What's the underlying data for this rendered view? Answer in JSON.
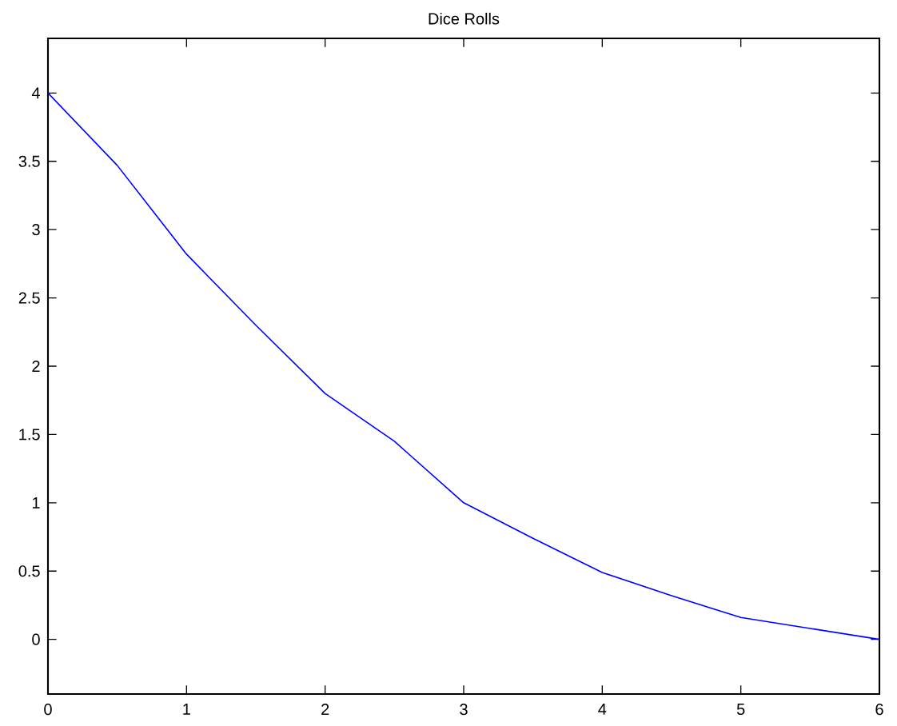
{
  "chart_data": {
    "type": "line",
    "title": "Dice Rolls",
    "x": [
      0,
      0.5,
      1,
      1.5,
      2,
      2.5,
      3,
      3.5,
      4,
      4.5,
      5,
      5.5,
      6
    ],
    "series": [
      {
        "color": "#0000ff",
        "values": [
          4,
          3.47,
          2.82,
          2.3,
          1.8,
          1.45,
          1,
          0.74,
          0.49,
          0.32,
          0.16,
          0.08,
          0
        ]
      }
    ],
    "xlim": [
      0,
      6
    ],
    "ylim": [
      -0.4,
      4.4
    ],
    "xticks": [
      0,
      1,
      2,
      3,
      4,
      5,
      6
    ],
    "yticks": [
      0,
      0.5,
      1,
      1.5,
      2,
      2.5,
      3,
      3.5,
      4
    ],
    "grid": false,
    "marker": "none",
    "line_style": "solid"
  }
}
